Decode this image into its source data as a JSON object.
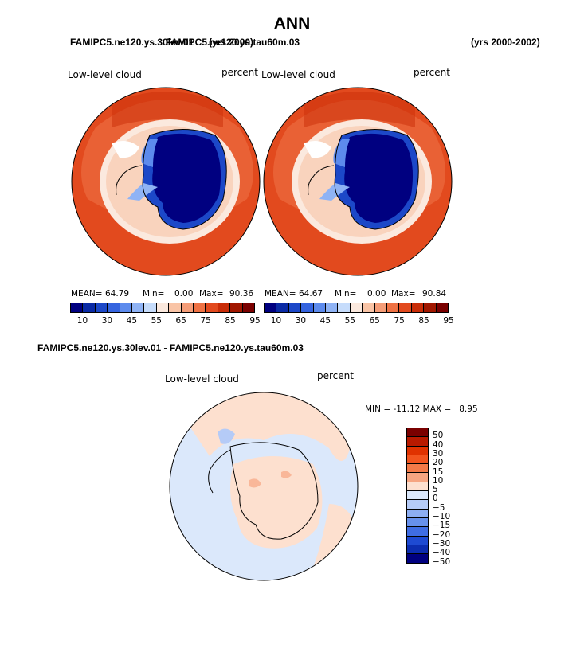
{
  "page_title": "ANN",
  "header": {
    "left_overlap_a": "FAMIPC5.ne120.ys.30lev.01",
    "left_overlap_b": "FAMIPC5.ne120.ys.tau60m.03",
    "left_overlap_c": "(yrs 2000)",
    "right": "(yrs 2000-2002)"
  },
  "panels": [
    {
      "field_label": "Low-level cloud",
      "units": "percent",
      "mean_label": "MEAN=",
      "mean_value": "64.79",
      "min_label": "Min=",
      "min_value": "0.00",
      "max_label": "Max=",
      "max_value": "90.36"
    },
    {
      "field_label": "Low-level cloud",
      "units": "percent",
      "mean_label": "MEAN=",
      "mean_value": "64.67",
      "min_label": "Min=",
      "min_value": "0.00",
      "max_label": "Max=",
      "max_value": "90.84"
    }
  ],
  "abs_colorbar": {
    "colors": [
      "#000080",
      "#0a2aa5",
      "#1c48c8",
      "#3564df",
      "#5d8bed",
      "#8fb3f5",
      "#c6dcfb",
      "#fbe9de",
      "#f9c4a6",
      "#f59d78",
      "#ef7244",
      "#e24a1e",
      "#c92d08",
      "#a11700",
      "#7a0000"
    ],
    "tick_labels": [
      "10",
      "30",
      "45",
      "55",
      "65",
      "75",
      "85",
      "95"
    ]
  },
  "diff": {
    "header": "FAMIPC5.ne120.ys.30lev.01 - FAMIPC5.ne120.ys.tau60m.03",
    "field_label": "Low-level cloud",
    "units": "percent",
    "minmax": "MIN = -11.12 MAX =   8.95",
    "colors": [
      "#7a0000",
      "#b81a00",
      "#e03200",
      "#f2541e",
      "#f37a48",
      "#f6a581",
      "#fde0cf",
      "#dbe8fb",
      "#b5cbf7",
      "#8daef2",
      "#6791ec",
      "#3f6de3",
      "#1e4ad2",
      "#0c2db0",
      "#000080"
    ],
    "tick_labels": [
      "50",
      "40",
      "30",
      "20",
      "15",
      "10",
      "5",
      "0",
      "−5",
      "−10",
      "−15",
      "−20",
      "−30",
      "−40",
      "−50"
    ]
  }
}
